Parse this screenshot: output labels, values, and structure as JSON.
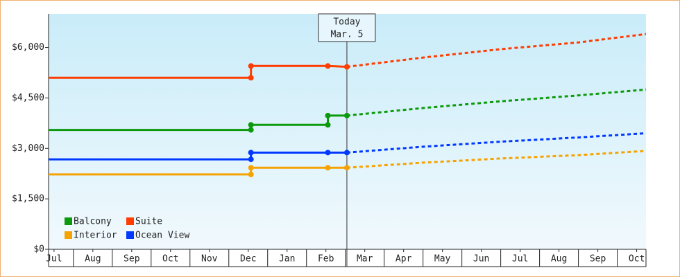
{
  "chart_data": {
    "type": "line",
    "xlim": [
      0.36,
      15.74
    ],
    "xticks": [
      {
        "value": 0.5,
        "label": "Jul"
      },
      {
        "value": 1.5,
        "label": "Aug"
      },
      {
        "value": 2.5,
        "label": "Sep"
      },
      {
        "value": 3.5,
        "label": "Oct"
      },
      {
        "value": 4.5,
        "label": "Nov"
      },
      {
        "value": 5.5,
        "label": "Dec"
      },
      {
        "value": 6.5,
        "label": "Jan"
      },
      {
        "value": 7.5,
        "label": "Feb"
      },
      {
        "value": 8.5,
        "label": "Mar"
      },
      {
        "value": 9.5,
        "label": "Apr"
      },
      {
        "value": 10.5,
        "label": "May"
      },
      {
        "value": 11.5,
        "label": "Jun"
      },
      {
        "value": 12.5,
        "label": "Jul"
      },
      {
        "value": 13.5,
        "label": "Aug"
      },
      {
        "value": 14.5,
        "label": "Sep"
      },
      {
        "value": 15.5,
        "label": "Oct"
      }
    ],
    "ylim": [
      0,
      7000
    ],
    "yticks": [
      {
        "value": 0,
        "label": "$0"
      },
      {
        "value": 1500,
        "label": "$1,500"
      },
      {
        "value": 3000,
        "label": "$3,000"
      },
      {
        "value": 4500,
        "label": "$4,500"
      },
      {
        "value": 6000,
        "label": "$6,000"
      }
    ],
    "today": {
      "x": 8.04,
      "label": [
        "Today",
        "Mar. 5"
      ]
    },
    "legend_columns": 2,
    "series": [
      {
        "name": "Balcony",
        "color": "#0c9a0c",
        "x": [
          0.36,
          5.57,
          5.57,
          7.55,
          7.55,
          8.04
        ],
        "values": [
          3550,
          3550,
          3700,
          3700,
          3975,
          3975
        ],
        "forecast": {
          "x": [
            8.04,
            10,
            12,
            14,
            15.74
          ],
          "values": [
            3975,
            4200,
            4400,
            4575,
            4750
          ]
        }
      },
      {
        "name": "Suite",
        "color": "#ff3d00",
        "x": [
          0.36,
          5.57,
          5.57,
          7.55,
          8.04
        ],
        "values": [
          5100,
          5100,
          5450,
          5450,
          5425
        ],
        "forecast": {
          "x": [
            8.04,
            10,
            12,
            14,
            15.74
          ],
          "values": [
            5425,
            5700,
            5950,
            6150,
            6400
          ]
        }
      },
      {
        "name": "Interior",
        "color": "#f5a300",
        "x": [
          0.36,
          5.57,
          5.57,
          7.55,
          8.04
        ],
        "values": [
          2225,
          2225,
          2425,
          2425,
          2425
        ],
        "forecast": {
          "x": [
            8.04,
            10,
            12,
            14,
            15.74
          ],
          "values": [
            2425,
            2575,
            2700,
            2800,
            2925
          ]
        }
      },
      {
        "name": "Ocean View",
        "color": "#0038ff",
        "x": [
          0.36,
          5.57,
          5.57,
          7.55,
          8.04
        ],
        "values": [
          2675,
          2675,
          2875,
          2875,
          2875
        ],
        "forecast": {
          "x": [
            8.04,
            10,
            12,
            14,
            15.74
          ],
          "values": [
            2875,
            3050,
            3200,
            3325,
            3450
          ]
        }
      }
    ]
  }
}
